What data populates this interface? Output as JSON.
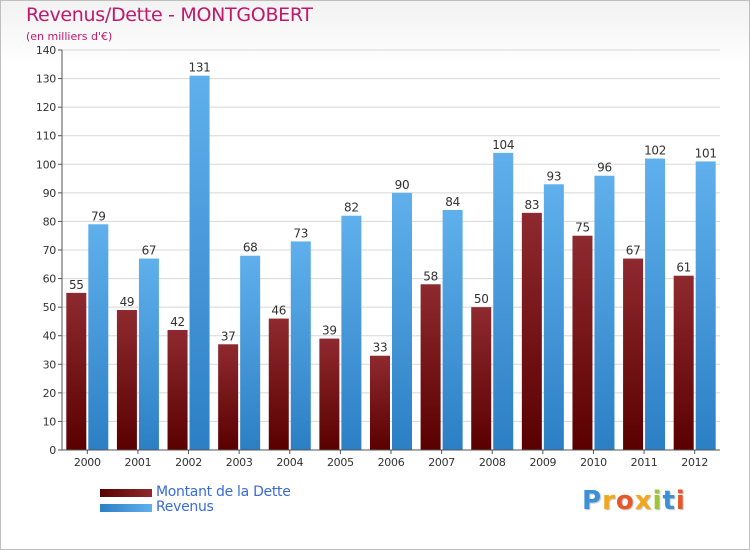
{
  "chart_data": {
    "type": "bar",
    "title": "Revenus/Dette - MONTGOBERT",
    "subtitle": "(en milliers d'€)",
    "categories": [
      "2000",
      "2001",
      "2002",
      "2003",
      "2004",
      "2005",
      "2006",
      "2007",
      "2008",
      "2009",
      "2010",
      "2011",
      "2012"
    ],
    "series": [
      {
        "name": "Montant de la Dette",
        "color": "#7a1a1e",
        "values": [
          55,
          49,
          42,
          37,
          46,
          39,
          33,
          58,
          50,
          83,
          75,
          67,
          61
        ]
      },
      {
        "name": "Revenus",
        "color": "#4fa3e3",
        "values": [
          79,
          67,
          131,
          68,
          73,
          82,
          90,
          84,
          104,
          93,
          96,
          102,
          101
        ]
      }
    ],
    "ylim": [
      0,
      140
    ],
    "yticks": [
      0,
      10,
      20,
      30,
      40,
      50,
      60,
      70,
      80,
      90,
      100,
      110,
      120,
      130,
      140
    ],
    "grid": true,
    "legend_position": "bottom-left"
  },
  "logo": {
    "letters": [
      "P",
      "r",
      "o",
      "x",
      "i",
      "t",
      "i"
    ],
    "colors": [
      "#3d8fd6",
      "#f2a81d",
      "#e8572a",
      "#f2a81d",
      "#9cc63b",
      "#3d8fd6",
      "#e8572a"
    ]
  }
}
